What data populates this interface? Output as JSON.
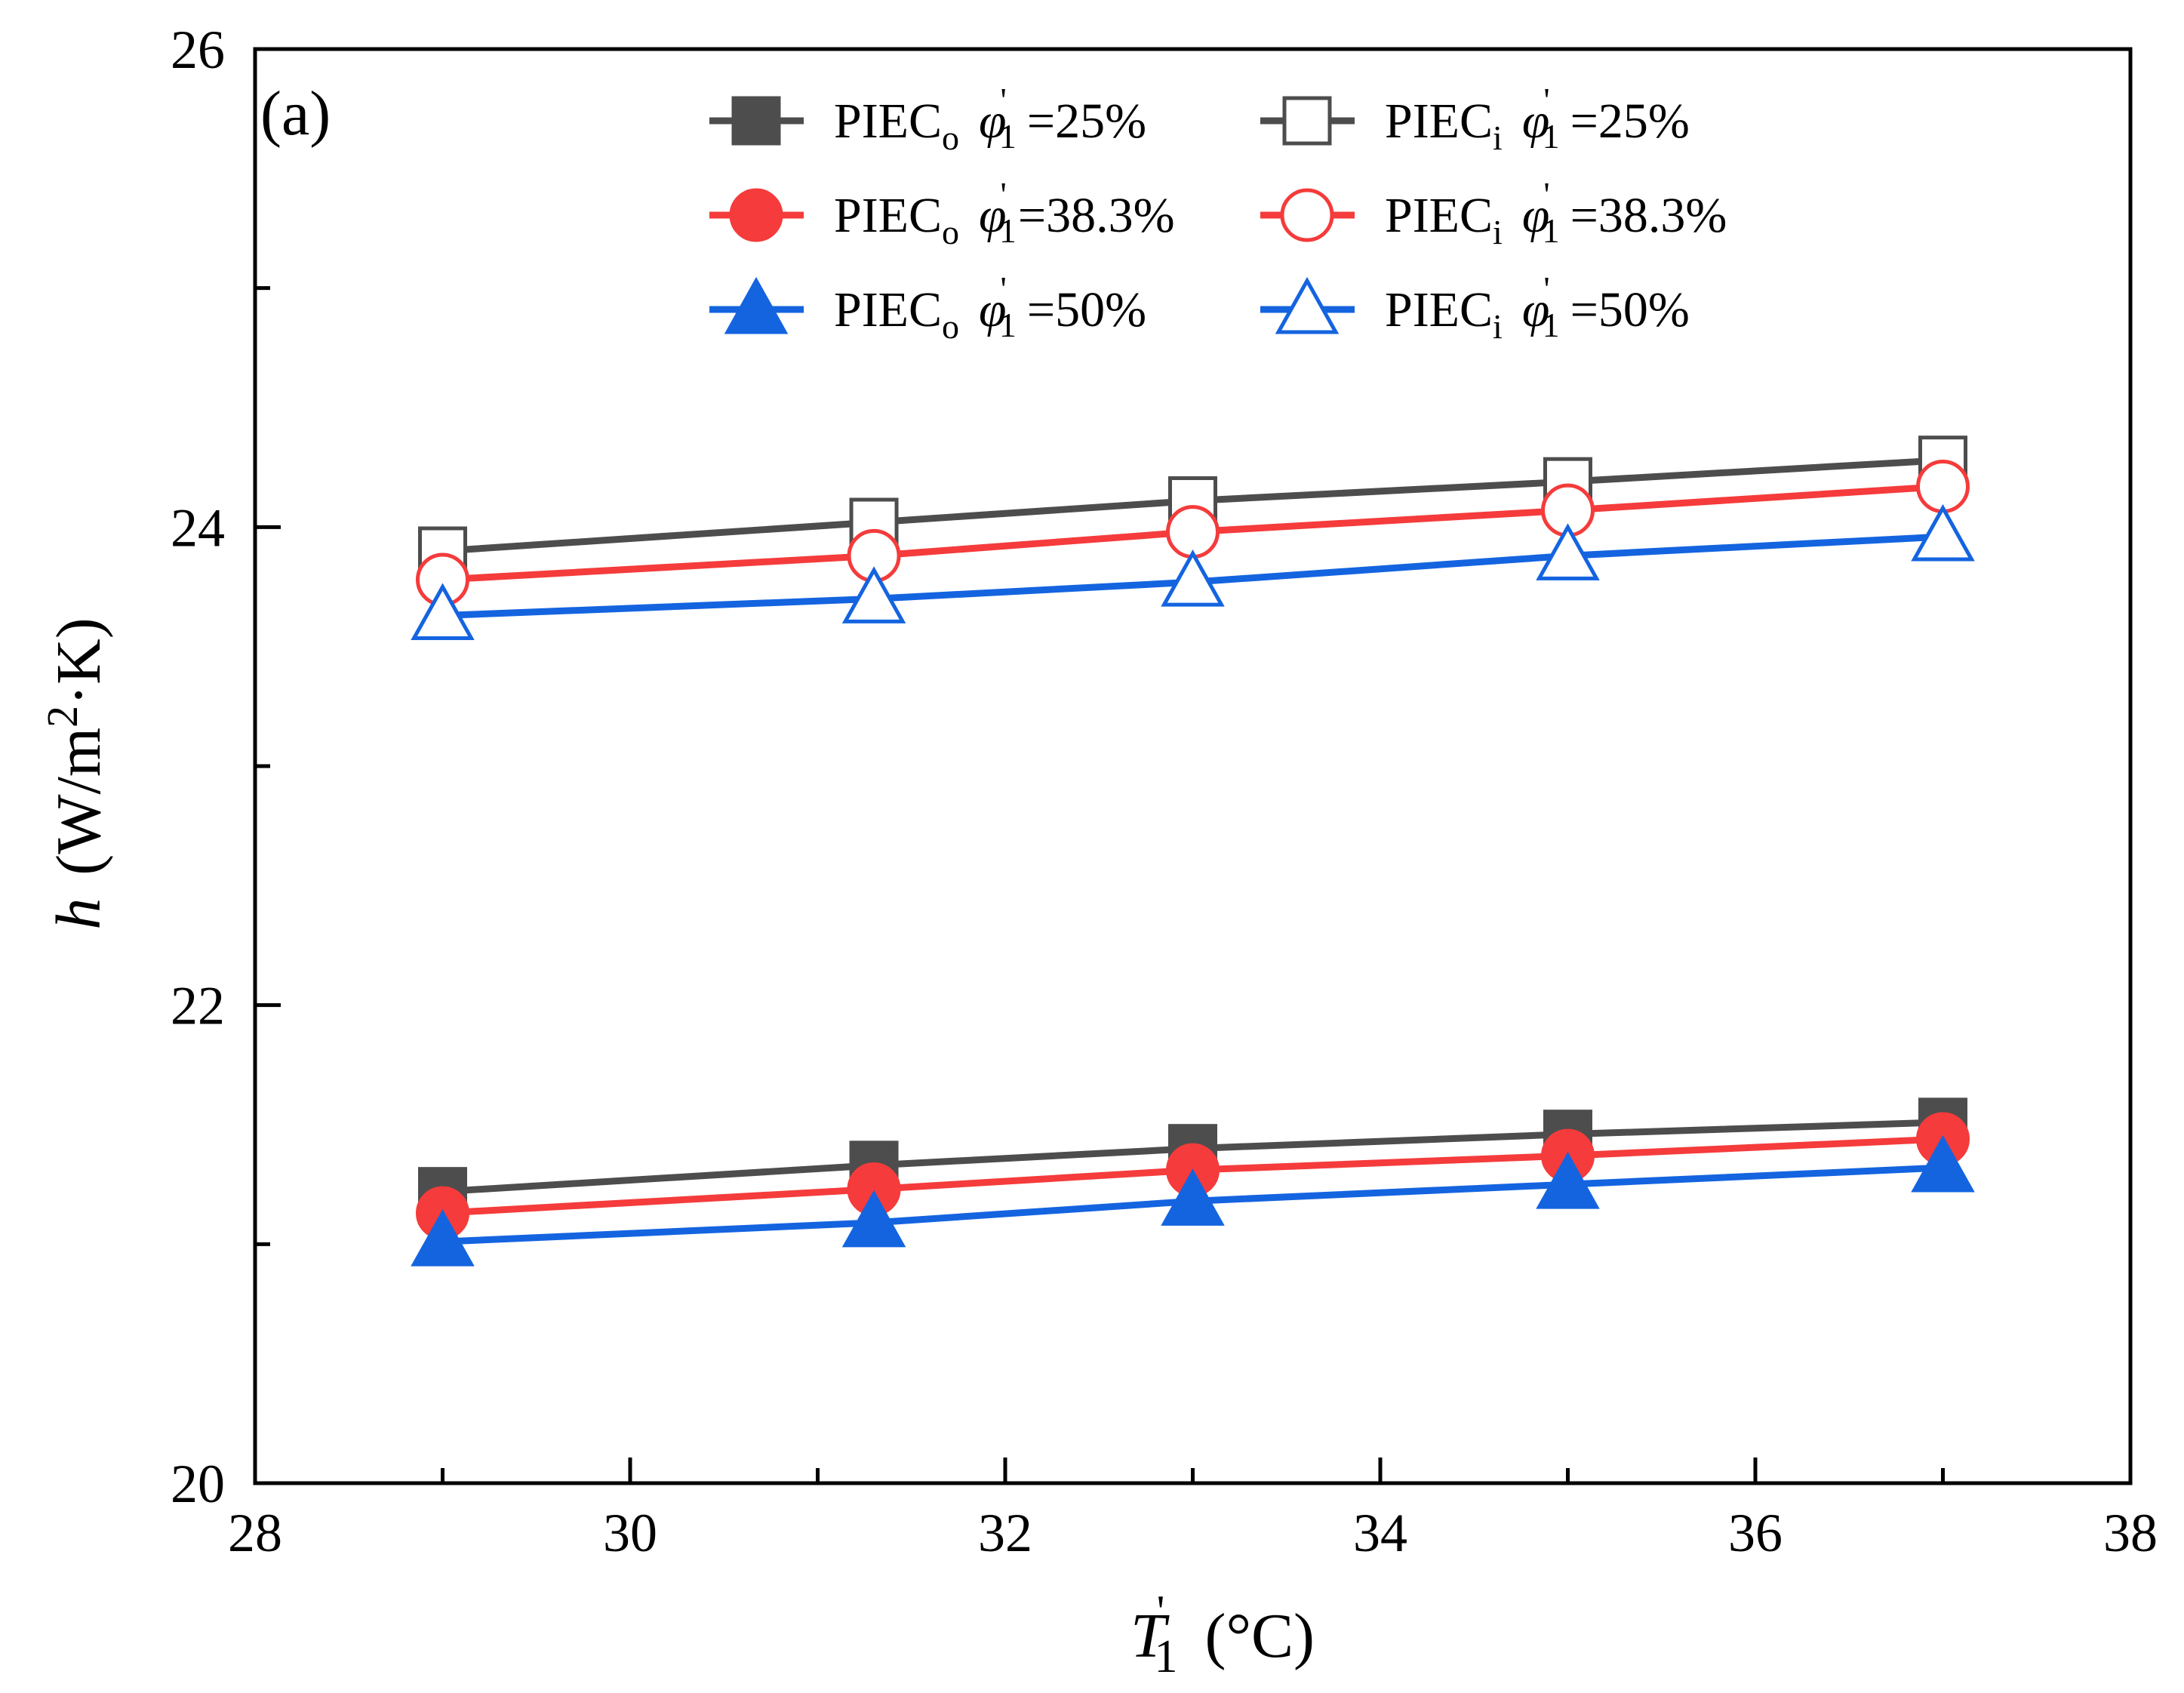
{
  "chart_data": {
    "type": "line",
    "panel_label": "(a)",
    "xlabel": {
      "symbol": "T",
      "prime": "'",
      "subscript": "1",
      "unit": "(°C)"
    },
    "ylabel": {
      "symbol": "h",
      "unit_prefix": "(W/m",
      "unit_sup": "2",
      "unit_suffix": "·K)"
    },
    "xlim": [
      28,
      38
    ],
    "ylim": [
      20,
      26
    ],
    "xticks": [
      28,
      30,
      32,
      34,
      36,
      38
    ],
    "yticks": [
      20,
      22,
      24,
      26
    ],
    "x": [
      29,
      31.3,
      33,
      35,
      37
    ],
    "grid": false,
    "legend_position": "top",
    "series": [
      {
        "name": "PIEC_o φ'_1 =25%",
        "base": "PIEC",
        "sub": "o",
        "pct": "=25%",
        "marker": "square",
        "filled": true,
        "color": "#4d4d4d",
        "values": [
          21.22,
          21.33,
          21.4,
          21.46,
          21.51
        ]
      },
      {
        "name": "PIEC_i φ'_1 =25%",
        "base": "PIEC",
        "sub": "i",
        "pct": "=25%",
        "marker": "square",
        "filled": false,
        "color": "#4d4d4d",
        "values": [
          23.9,
          24.02,
          24.11,
          24.19,
          24.28
        ]
      },
      {
        "name": "PIEC_o φ'_1=38.3%",
        "base": "PIEC",
        "sub": "o",
        "pct": "=38.3%",
        "marker": "circle",
        "filled": true,
        "color": "#f53b3b",
        "values": [
          21.13,
          21.23,
          21.31,
          21.37,
          21.44
        ]
      },
      {
        "name": "PIEC_i φ'_1 =38.3%",
        "base": "PIEC",
        "sub": "i",
        "pct": "=38.3%",
        "marker": "circle",
        "filled": false,
        "color": "#f53b3b",
        "values": [
          23.78,
          23.88,
          23.98,
          24.07,
          24.17
        ]
      },
      {
        "name": "PIEC_o φ'_1 =50%",
        "base": "PIEC",
        "sub": "o",
        "pct": "=50%",
        "marker": "triangle",
        "filled": true,
        "color": "#1464e0",
        "values": [
          21.01,
          21.09,
          21.18,
          21.25,
          21.32
        ]
      },
      {
        "name": "PIEC_i φ'_1 =50%",
        "base": "PIEC",
        "sub": "i",
        "pct": "=50%",
        "marker": "triangle",
        "filled": false,
        "color": "#1464e0",
        "values": [
          23.63,
          23.7,
          23.77,
          23.88,
          23.96
        ]
      }
    ],
    "legend_symbol": "φ",
    "legend_symbol_prime": "'",
    "legend_symbol_sub": "1"
  }
}
